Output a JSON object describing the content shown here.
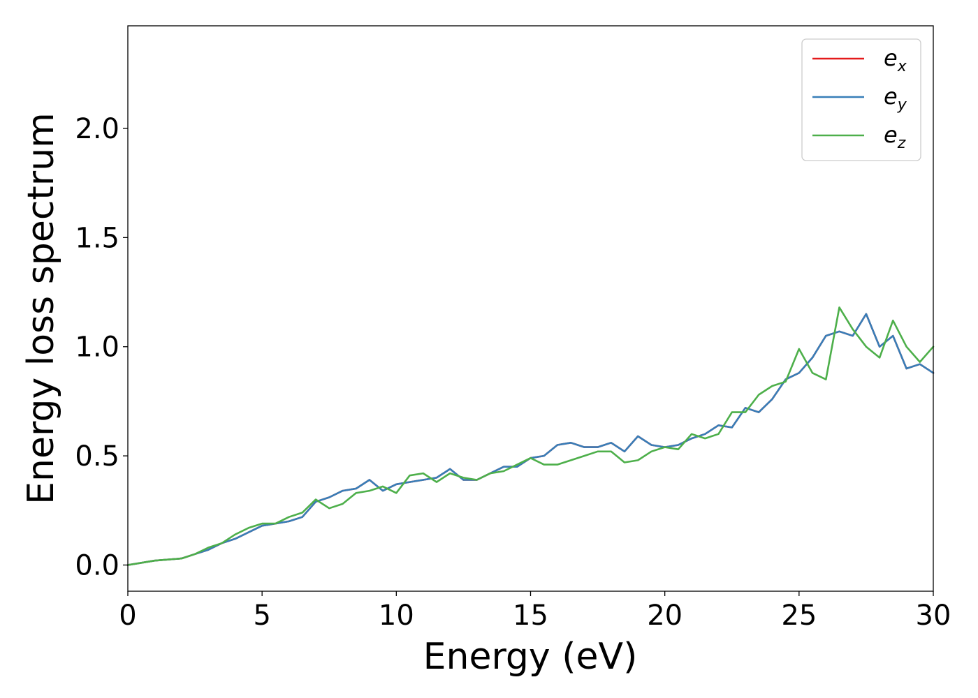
{
  "chart_data": {
    "type": "line",
    "xlabel": "Energy (eV)",
    "ylabel": "Energy loss spectrum",
    "xlim": [
      0,
      30
    ],
    "ylim": [
      -0.12,
      2.47
    ],
    "x_ticks": [
      "0",
      "5",
      "10",
      "15",
      "20",
      "25",
      "30"
    ],
    "y_ticks": [
      "0.0",
      "0.5",
      "1.0",
      "1.5",
      "2.0"
    ],
    "grid": false,
    "legend_position": "top-right",
    "series": [
      {
        "name": "e_x",
        "label_base": "e",
        "label_sub": "x",
        "color": "#e41a1c",
        "x": [
          0,
          1,
          2,
          2.5,
          3,
          3.5,
          4,
          4.5,
          5,
          5.5,
          6,
          6.5,
          7,
          7.5,
          8,
          8.5,
          9,
          9.5,
          10,
          10.5,
          11,
          11.5,
          12,
          12.5,
          13,
          13.5,
          14,
          14.5,
          15,
          15.5,
          16,
          16.5,
          17,
          17.5,
          18,
          18.5,
          19,
          19.5,
          20,
          20.5,
          21,
          21.5,
          22,
          22.5,
          23,
          23.5,
          24,
          24.5,
          25,
          25.5,
          26,
          26.5,
          27,
          27.5,
          28,
          28.5,
          29,
          29.5,
          30
        ],
        "y": [
          0,
          0.02,
          0.03,
          0.05,
          0.07,
          0.1,
          0.12,
          0.15,
          0.18,
          0.19,
          0.2,
          0.22,
          0.29,
          0.31,
          0.34,
          0.35,
          0.39,
          0.34,
          0.37,
          0.38,
          0.39,
          0.4,
          0.44,
          0.39,
          0.39,
          0.42,
          0.45,
          0.45,
          0.49,
          0.5,
          0.55,
          0.56,
          0.54,
          0.54,
          0.56,
          0.52,
          0.59,
          0.55,
          0.54,
          0.55,
          0.58,
          0.6,
          0.64,
          0.63,
          0.72,
          0.7,
          0.76,
          0.85,
          0.88,
          0.95,
          1.05,
          1.07,
          1.05,
          1.15,
          1.0,
          1.05,
          0.9,
          0.92,
          0.88
        ]
      },
      {
        "name": "e_y",
        "label_base": "e",
        "label_sub": "y",
        "color": "#377eb8",
        "x": [
          0,
          1,
          2,
          2.5,
          3,
          3.5,
          4,
          4.5,
          5,
          5.5,
          6,
          6.5,
          7,
          7.5,
          8,
          8.5,
          9,
          9.5,
          10,
          10.5,
          11,
          11.5,
          12,
          12.5,
          13,
          13.5,
          14,
          14.5,
          15,
          15.5,
          16,
          16.5,
          17,
          17.5,
          18,
          18.5,
          19,
          19.5,
          20,
          20.5,
          21,
          21.5,
          22,
          22.5,
          23,
          23.5,
          24,
          24.5,
          25,
          25.5,
          26,
          26.5,
          27,
          27.5,
          28,
          28.5,
          29,
          29.5,
          30
        ],
        "y": [
          0,
          0.02,
          0.03,
          0.05,
          0.07,
          0.1,
          0.12,
          0.15,
          0.18,
          0.19,
          0.2,
          0.22,
          0.29,
          0.31,
          0.34,
          0.35,
          0.39,
          0.34,
          0.37,
          0.38,
          0.39,
          0.4,
          0.44,
          0.39,
          0.39,
          0.42,
          0.45,
          0.45,
          0.49,
          0.5,
          0.55,
          0.56,
          0.54,
          0.54,
          0.56,
          0.52,
          0.59,
          0.55,
          0.54,
          0.55,
          0.58,
          0.6,
          0.64,
          0.63,
          0.72,
          0.7,
          0.76,
          0.85,
          0.88,
          0.95,
          1.05,
          1.07,
          1.05,
          1.15,
          1.0,
          1.05,
          0.9,
          0.92,
          0.88
        ]
      },
      {
        "name": "e_z",
        "label_base": "e",
        "label_sub": "z",
        "color": "#4daf4a",
        "x": [
          0,
          1,
          2,
          2.5,
          3,
          3.5,
          4,
          4.5,
          5,
          5.5,
          6,
          6.5,
          7,
          7.5,
          8,
          8.5,
          9,
          9.5,
          10,
          10.5,
          11,
          11.5,
          12,
          12.5,
          13,
          13.5,
          14,
          14.5,
          15,
          15.5,
          16,
          16.5,
          17,
          17.5,
          18,
          18.5,
          19,
          19.5,
          20,
          20.5,
          21,
          21.5,
          22,
          22.5,
          23,
          23.5,
          24,
          24.5,
          25,
          25.5,
          26,
          26.5,
          27,
          27.5,
          28,
          28.5,
          29,
          29.5,
          30
        ],
        "y": [
          0,
          0.02,
          0.03,
          0.05,
          0.08,
          0.1,
          0.14,
          0.17,
          0.19,
          0.19,
          0.22,
          0.24,
          0.3,
          0.26,
          0.28,
          0.33,
          0.34,
          0.36,
          0.33,
          0.41,
          0.42,
          0.38,
          0.42,
          0.4,
          0.39,
          0.42,
          0.43,
          0.46,
          0.49,
          0.46,
          0.46,
          0.48,
          0.5,
          0.52,
          0.52,
          0.47,
          0.48,
          0.52,
          0.54,
          0.53,
          0.6,
          0.58,
          0.6,
          0.7,
          0.7,
          0.78,
          0.82,
          0.84,
          0.99,
          0.88,
          0.85,
          1.18,
          1.08,
          1.0,
          0.95,
          1.12,
          1.0,
          0.93,
          1.0
        ]
      }
    ]
  }
}
